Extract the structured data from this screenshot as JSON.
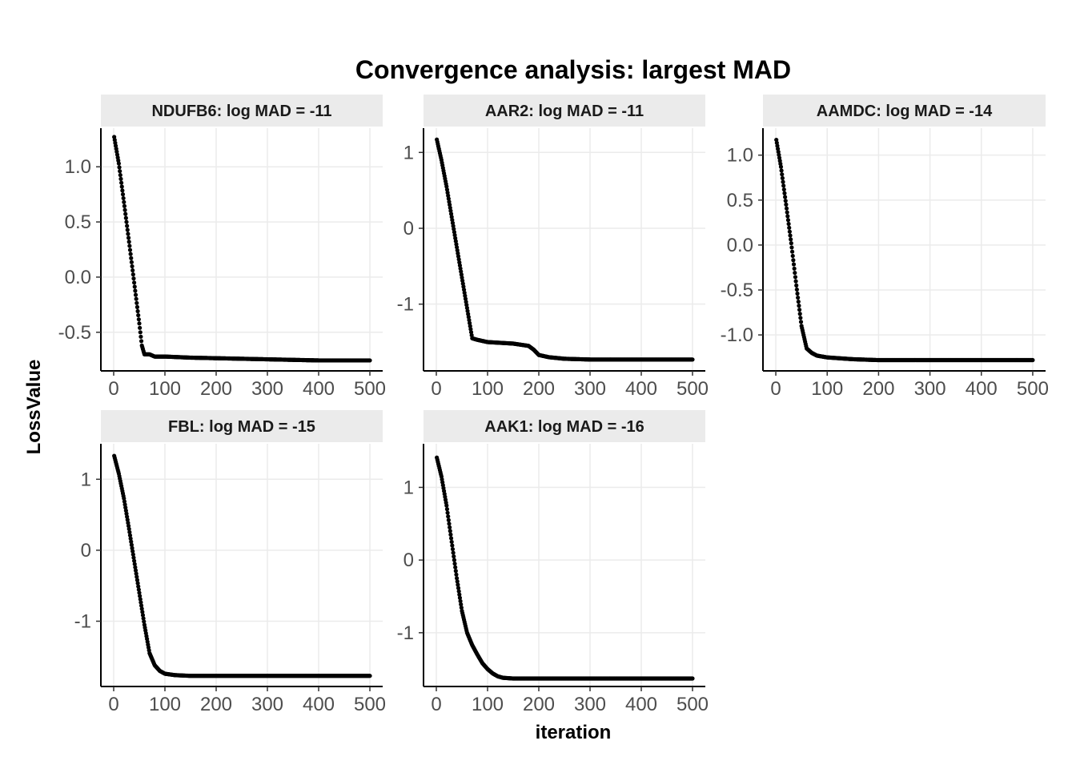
{
  "chart_data": {
    "type": "scatter",
    "title": "Convergence analysis: largest MAD",
    "xlabel": "iteration",
    "ylabel": "LossValue",
    "grid": true,
    "legend": "none",
    "colors": {
      "points": "#000000",
      "strip_bg": "#ebebeb",
      "grid": "#ebebeb",
      "axis": "#000000",
      "tick_text": "#4d4d4d"
    },
    "panels": [
      {
        "name": "NDUFB6",
        "strip": "NDUFB6: log MAD = -11",
        "xlim": [
          -25,
          525
        ],
        "ylim": [
          -0.85,
          1.35
        ],
        "xticks": [
          0,
          100,
          200,
          300,
          400,
          500
        ],
        "xtick_labels": [
          "0",
          "100",
          "200",
          "300",
          "400",
          "500"
        ],
        "yticks": [
          1.0,
          0.5,
          0.0,
          -0.5
        ],
        "ytick_labels": [
          "1.0",
          "0.5",
          "0.0",
          "-0.5"
        ],
        "x": [
          1,
          10,
          20,
          30,
          40,
          50,
          55,
          60,
          70,
          80,
          100,
          150,
          200,
          250,
          300,
          350,
          400,
          450,
          500
        ],
        "y": [
          1.27,
          1.03,
          0.68,
          0.32,
          -0.05,
          -0.42,
          -0.62,
          -0.7,
          -0.7,
          -0.72,
          -0.72,
          -0.73,
          -0.735,
          -0.74,
          -0.745,
          -0.75,
          -0.755,
          -0.755,
          -0.755
        ]
      },
      {
        "name": "AAR2",
        "strip": "AAR2: log MAD = -11",
        "xlim": [
          -25,
          525
        ],
        "ylim": [
          -1.88,
          1.32
        ],
        "xticks": [
          0,
          100,
          200,
          300,
          400,
          500
        ],
        "xtick_labels": [
          "0",
          "100",
          "200",
          "300",
          "400",
          "500"
        ],
        "yticks": [
          1,
          0,
          -1
        ],
        "ytick_labels": [
          "1",
          "0",
          "-1"
        ],
        "x": [
          1,
          10,
          20,
          30,
          40,
          50,
          60,
          70,
          80,
          100,
          150,
          180,
          190,
          200,
          220,
          250,
          300,
          400,
          500
        ],
        "y": [
          1.17,
          0.9,
          0.55,
          0.15,
          -0.25,
          -0.65,
          -1.05,
          -1.45,
          -1.47,
          -1.5,
          -1.52,
          -1.55,
          -1.6,
          -1.67,
          -1.7,
          -1.72,
          -1.73,
          -1.73,
          -1.73
        ]
      },
      {
        "name": "AAMDC",
        "strip": "AAMDC: log MAD = -14",
        "xlim": [
          -25,
          525
        ],
        "ylim": [
          -1.4,
          1.3
        ],
        "xticks": [
          0,
          100,
          200,
          300,
          400,
          500
        ],
        "xtick_labels": [
          "0",
          "100",
          "200",
          "300",
          "400",
          "500"
        ],
        "yticks": [
          1.0,
          0.5,
          0.0,
          -0.5,
          -1.0
        ],
        "ytick_labels": [
          "1.0",
          "0.5",
          "0.0",
          "-0.5",
          "-1.0"
        ],
        "x": [
          1,
          10,
          20,
          30,
          40,
          50,
          60,
          70,
          80,
          100,
          150,
          200,
          300,
          400,
          500
        ],
        "y": [
          1.17,
          0.87,
          0.45,
          0.02,
          -0.45,
          -0.9,
          -1.15,
          -1.2,
          -1.23,
          -1.25,
          -1.27,
          -1.28,
          -1.28,
          -1.28,
          -1.28
        ]
      },
      {
        "name": "FBL",
        "strip": "FBL: log MAD = -15",
        "xlim": [
          -25,
          525
        ],
        "ylim": [
          -1.92,
          1.5
        ],
        "xticks": [
          0,
          100,
          200,
          300,
          400,
          500
        ],
        "xtick_labels": [
          "0",
          "100",
          "200",
          "300",
          "400",
          "500"
        ],
        "yticks": [
          1,
          0,
          -1
        ],
        "ytick_labels": [
          "1",
          "0",
          "-1"
        ],
        "x": [
          1,
          10,
          20,
          30,
          40,
          50,
          60,
          70,
          80,
          90,
          100,
          120,
          150,
          200,
          300,
          400,
          500
        ],
        "y": [
          1.33,
          1.08,
          0.73,
          0.3,
          -0.15,
          -0.6,
          -1.05,
          -1.45,
          -1.62,
          -1.7,
          -1.74,
          -1.76,
          -1.77,
          -1.77,
          -1.77,
          -1.77,
          -1.77
        ]
      },
      {
        "name": "AAK1",
        "strip": "AAK1: log MAD = -16",
        "xlim": [
          -25,
          525
        ],
        "ylim": [
          -1.74,
          1.6
        ],
        "xticks": [
          0,
          100,
          200,
          300,
          400,
          500
        ],
        "xtick_labels": [
          "0",
          "100",
          "200",
          "300",
          "400",
          "500"
        ],
        "yticks": [
          1,
          0,
          -1
        ],
        "ytick_labels": [
          "1",
          "0",
          "-1"
        ],
        "x": [
          1,
          10,
          20,
          30,
          40,
          50,
          60,
          70,
          80,
          90,
          100,
          110,
          120,
          130,
          150,
          200,
          300,
          400,
          500
        ],
        "y": [
          1.41,
          1.15,
          0.75,
          0.25,
          -0.25,
          -0.7,
          -1.0,
          -1.17,
          -1.3,
          -1.42,
          -1.5,
          -1.56,
          -1.6,
          -1.62,
          -1.63,
          -1.63,
          -1.63,
          -1.63,
          -1.63
        ]
      }
    ]
  }
}
